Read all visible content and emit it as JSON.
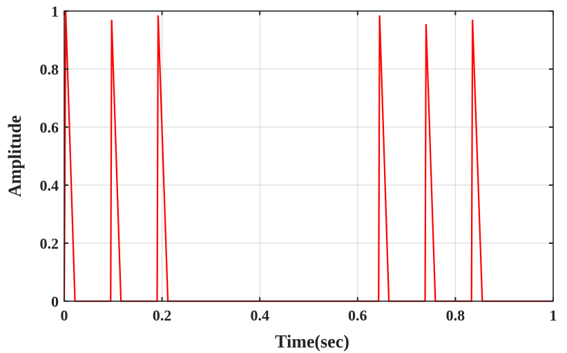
{
  "chart_data": {
    "type": "line",
    "title": "",
    "xlabel": "Time(sec)",
    "ylabel": "Amplitude",
    "xlim": [
      0,
      1
    ],
    "ylim": [
      0,
      1
    ],
    "grid": true,
    "line_color": "#ff0000",
    "xticks": [
      {
        "value": 0,
        "label": "0"
      },
      {
        "value": 0.2,
        "label": "0.2"
      },
      {
        "value": 0.4,
        "label": "0.4"
      },
      {
        "value": 0.6,
        "label": "0.6"
      },
      {
        "value": 0.8,
        "label": "0.8"
      },
      {
        "value": 1,
        "label": "1"
      }
    ],
    "yticks": [
      {
        "value": 0,
        "label": "0"
      },
      {
        "value": 0.2,
        "label": "0.2"
      },
      {
        "value": 0.4,
        "label": "0.4"
      },
      {
        "value": 0.6,
        "label": "0.6"
      },
      {
        "value": 0.8,
        "label": "0.8"
      },
      {
        "value": 1,
        "label": "1"
      }
    ],
    "series": [
      {
        "x": [
          0,
          0.003,
          0.022,
          0.095,
          0.097,
          0.116,
          0.19,
          0.192,
          0.212,
          0.643,
          0.645,
          0.664,
          0.738,
          0.74,
          0.759,
          0.833,
          0.835,
          0.855,
          1.0
        ],
        "y": [
          0,
          1.0,
          0,
          0,
          0.97,
          0,
          0,
          0.985,
          0,
          0,
          0.985,
          0,
          0,
          0.955,
          0,
          0,
          0.97,
          0,
          0
        ]
      }
    ]
  }
}
